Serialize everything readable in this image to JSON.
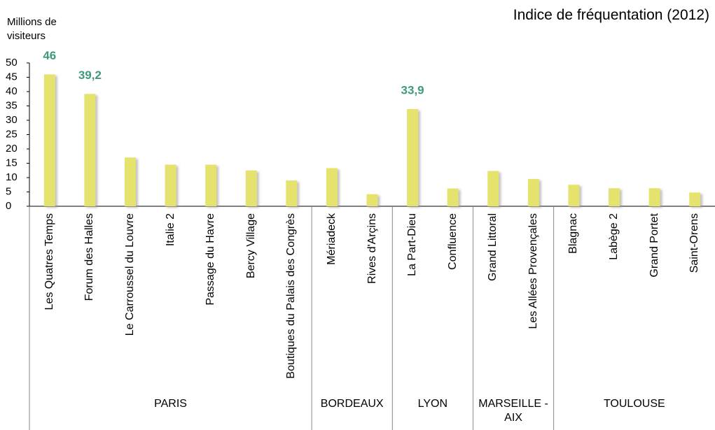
{
  "chart_data": {
    "type": "bar",
    "title": "Indice de fréquentation (2012)",
    "y_label": "Millions de visiteurs",
    "color": "#e6e26e",
    "value_label_color": "#3f9a7a",
    "ylim": [
      0,
      50
    ],
    "yticks": [
      0,
      5,
      10,
      15,
      20,
      25,
      30,
      35,
      40,
      45,
      50
    ],
    "groups": [
      {
        "name": "PARIS",
        "categories": [
          "Les Quatres Temps",
          "Forum des Halles",
          "Le Carroussel du Louvre",
          "Italie 2",
          "Passage du Havre",
          "Bercy Village",
          "Boutiques du Palais des Congrès"
        ],
        "values": [
          46,
          39.2,
          17,
          14.5,
          14.5,
          12.5,
          9
        ],
        "value_labels": [
          "46",
          "39,2",
          null,
          null,
          null,
          null,
          null
        ]
      },
      {
        "name": "BORDEAUX",
        "categories": [
          "Mériadeck",
          "Rives d'Arçins"
        ],
        "values": [
          13.3,
          4.2
        ],
        "value_labels": [
          null,
          null
        ]
      },
      {
        "name": "LYON",
        "categories": [
          "La Part-Dieu",
          "Confluence"
        ],
        "values": [
          33.9,
          6.2
        ],
        "value_labels": [
          "33,9",
          null
        ]
      },
      {
        "name": "MARSEILLE - AIX",
        "categories": [
          "Grand Littoral",
          "Les Allées Provençales"
        ],
        "values": [
          12.3,
          9.5
        ],
        "value_labels": [
          null,
          null
        ]
      },
      {
        "name": "TOULOUSE",
        "categories": [
          "Blagnac",
          "Labège 2",
          "Grand Portet",
          "Saint-Orens"
        ],
        "values": [
          7.5,
          6.3,
          6.3,
          4.8
        ],
        "value_labels": [
          null,
          null,
          null,
          null
        ]
      }
    ]
  }
}
